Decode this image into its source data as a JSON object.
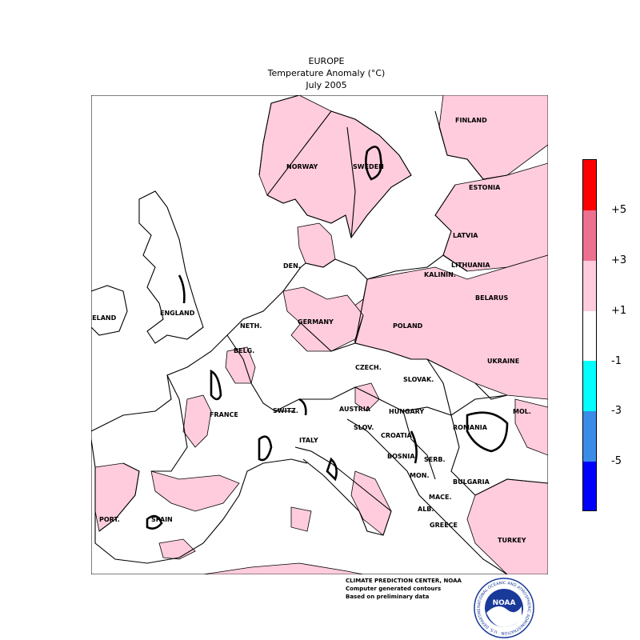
{
  "header": {
    "region": "EUROPE",
    "variable": "Temperature Anomaly (°C)",
    "period": "July 2005"
  },
  "map_labels": {
    "finland": "FINLAND",
    "norway": "NORWAY",
    "sweden": "SWEDEN",
    "estonia": "ESTONIA",
    "latvia": "LATVIA",
    "lithuania": "LITHUANIA",
    "kalinin": "KALININ.",
    "belarus": "BELARUS",
    "den": "DEN.",
    "ireland": "IRELAND",
    "england": "ENGLAND",
    "neth": "NETH.",
    "germany": "GERMANY",
    "poland": "POLAND",
    "belg": "BELG.",
    "czech": "CZECH.",
    "ukraine": "UKRAINE",
    "slovak": "SLOVAK.",
    "france": "FRANCE",
    "switz": "SWITZ.",
    "austria": "AUSTRIA",
    "hungary": "HUNGARY",
    "mol": "MOL.",
    "slov": "SLOV.",
    "croatia": "CROATIA",
    "romania": "ROMANIA",
    "italy": "ITALY",
    "bosnia": "BOSNIA",
    "serb": "SERB.",
    "mon": "MON.",
    "bulgaria": "BULGARIA",
    "mace": "MACE.",
    "port": "PORT.",
    "spain": "SPAIN",
    "alb": "ALB.",
    "greece": "GREECE",
    "turkey": "TURKEY"
  },
  "legend": {
    "bins": [
      {
        "range": "> +5",
        "color": "#ff0000"
      },
      {
        "range": "+3 to +5",
        "color": "#ee7090"
      },
      {
        "range": "+1 to +3",
        "color": "#ffccdd"
      },
      {
        "range": "-1 to +1",
        "color": "#ffffff"
      },
      {
        "range": "-3 to -1",
        "color": "#00ffff"
      },
      {
        "range": "-5 to -3",
        "color": "#3a8ce8"
      },
      {
        "range": "< -5",
        "color": "#0000ff"
      }
    ],
    "ticks": [
      "+5",
      "+3",
      "+1",
      "-1",
      "-3",
      "-5"
    ]
  },
  "credits": {
    "line1": "CLIMATE PREDICTION CENTER, NOAA",
    "line2": "Computer generated contours",
    "line3": "Based on preliminary data"
  },
  "logo": {
    "text": "NOAA",
    "ring_text": "NATIONAL OCEANIC AND ATMOSPHERIC ADMINISTRATION · U.S. DEPARTMENT OF COMMERCE ·"
  },
  "colors": {
    "warm_anomaly": "#ffccdd",
    "neutral": "#ffffff",
    "outline": "#000000"
  }
}
